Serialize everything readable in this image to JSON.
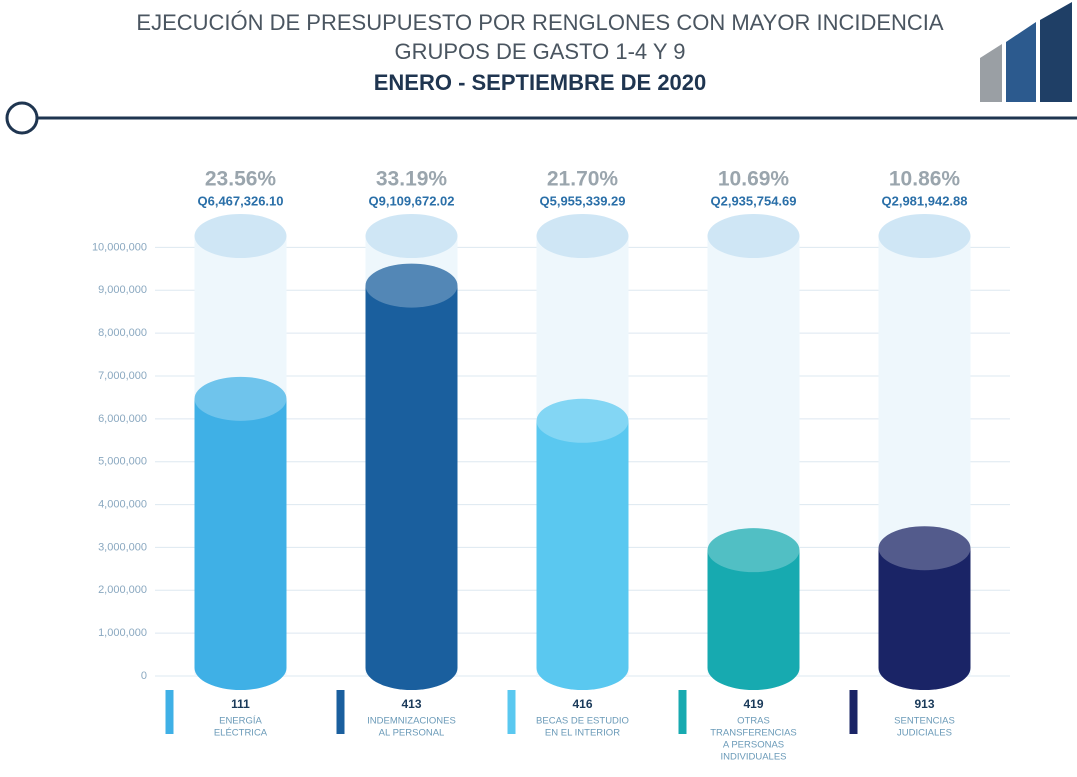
{
  "chart_data": {
    "type": "cylinder-bar",
    "title": "EJECUCIÓN DE PRESUPUESTO POR RENGLONES CON MAYOR INCIDENCIA",
    "subtitle": "GRUPOS DE GASTO 1-4 Y 9",
    "period": "ENERO - SEPTIEMBRE DE 2020",
    "categories": [
      "111",
      "413",
      "416",
      "419",
      "913"
    ],
    "descriptions": [
      [
        "ENERGÍA",
        "ELÉCTRICA"
      ],
      [
        "INDEMNIZACIONES",
        "AL PERSONAL"
      ],
      [
        "BECAS DE ESTUDIO",
        "EN EL INTERIOR"
      ],
      [
        "OTRAS",
        "TRANSFERENCIAS",
        "A PERSONAS",
        "INDIVIDUALES"
      ],
      [
        "SENTENCIAS",
        "JUDICIALES"
      ]
    ],
    "values": [
      6467326.1,
      9109672.02,
      5955339.29,
      2935754.69,
      2981942.88
    ],
    "value_labels": [
      "Q6,467,326.10",
      "Q9,109,672.02",
      "Q5,955,339.29",
      "Q2,935,754.69",
      "Q2,981,942.88"
    ],
    "shares": [
      23.56,
      33.19,
      21.7,
      10.69,
      10.86
    ],
    "share_labels": [
      "23.56%",
      "33.19%",
      "21.70%",
      "10.69%",
      "10.86%"
    ],
    "colors": [
      "#3fb0e6",
      "#1a5f9e",
      "#5ac8f0",
      "#17aab0",
      "#1a2466"
    ],
    "ylim": [
      0,
      10500000
    ],
    "yticks": [
      0,
      {
        "value": 1000000,
        "label": "1,000,000"
      },
      {
        "value": 2000000,
        "label": "2,000,000"
      },
      {
        "value": 3000000,
        "label": "3,000,000"
      },
      {
        "value": 4000000,
        "label": "4,000,000"
      },
      {
        "value": 5000000,
        "label": "5,000,000"
      },
      {
        "value": 6000000,
        "label": "6,000,000"
      },
      {
        "value": 7000000,
        "label": "7,000,000"
      },
      {
        "value": 8000000,
        "label": "8,000,000"
      },
      {
        "value": 9000000,
        "label": "9,000,000"
      },
      {
        "value": 10000000,
        "label": "10,000,000"
      }
    ],
    "grid": true
  }
}
